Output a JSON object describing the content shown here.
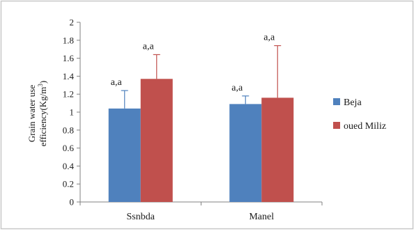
{
  "chart_data": {
    "type": "bar",
    "title": "",
    "xlabel": "",
    "ylabel_line1": "Grain water use",
    "ylabel_line2_prefix": "efficiency(Kg/m",
    "ylabel_line2_sup": "3",
    "ylabel_line2_suffix": ")",
    "ylim": [
      0,
      2
    ],
    "y_ticks": [
      "0",
      "0.2",
      "0.4",
      "0.6",
      "0.8",
      "1",
      "1.2",
      "1.4",
      "1.6",
      "1.8",
      "2"
    ],
    "categories": [
      "Ssnbda",
      "Manel"
    ],
    "series": [
      {
        "name": "Beja",
        "color": "#4f81bd",
        "values": [
          1.04,
          1.09
        ],
        "error_upper": [
          1.24,
          1.18
        ],
        "annotations": [
          "a,a",
          "a,a"
        ]
      },
      {
        "name": "oued Miliz",
        "color": "#c0504d",
        "values": [
          1.37,
          1.16
        ],
        "error_upper": [
          1.64,
          1.74
        ],
        "annotations": [
          "a,a",
          "a,a"
        ]
      }
    ],
    "legend_position": "right",
    "grid": false
  },
  "frame_color": "#c8c8c8"
}
